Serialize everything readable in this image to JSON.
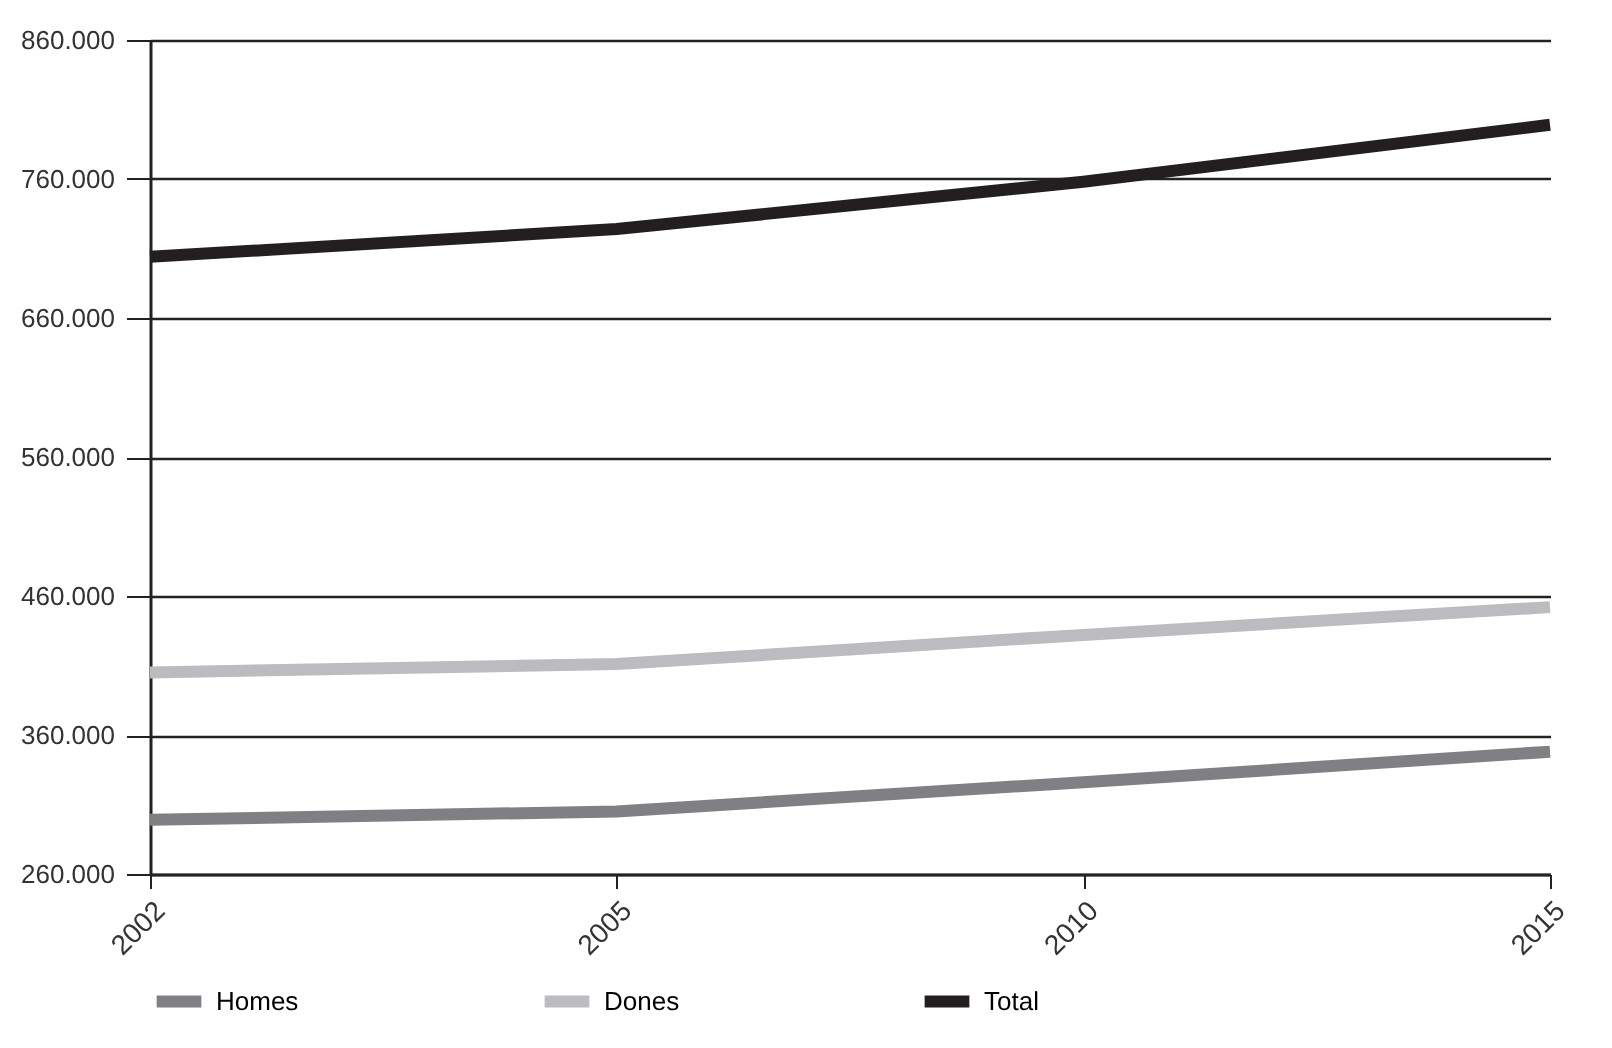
{
  "chart_data": {
    "type": "line",
    "categories": [
      "2002",
      "2005",
      "2010",
      "2015"
    ],
    "series": [
      {
        "name": "Homes",
        "color": "#808084",
        "values": [
          299000,
          305000,
          326000,
          348000
        ]
      },
      {
        "name": "Dones",
        "color": "#bcbcc0",
        "values": [
          405000,
          411000,
          432000,
          452000
        ]
      },
      {
        "name": "Total",
        "color": "#231f20",
        "values": [
          704000,
          724000,
          758000,
          799000
        ]
      }
    ],
    "ylim": [
      260000,
      860000
    ],
    "yticks": [
      {
        "value": 260000,
        "label": "260.000"
      },
      {
        "value": 360000,
        "label": "360.000"
      },
      {
        "value": 460000,
        "label": "460.000"
      },
      {
        "value": 560000,
        "label": "560.000"
      },
      {
        "value": 660000,
        "label": "660.000"
      },
      {
        "value": 760000,
        "label": "760.000"
      },
      {
        "value": 860000,
        "label": "860.000"
      }
    ],
    "grid": "y",
    "legend": "bottom",
    "marker": "none",
    "line_style": "solid"
  }
}
